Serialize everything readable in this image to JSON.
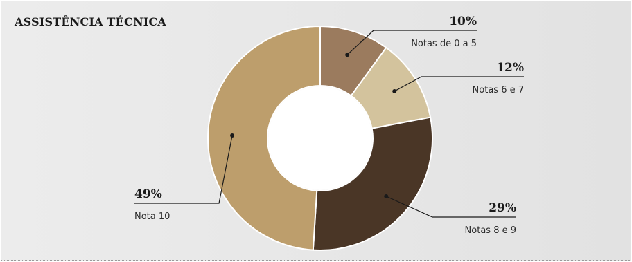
{
  "chart_data": {
    "type": "pie",
    "title": "ASSISTÊNCIA TÉCNICA",
    "donut": true,
    "legend": "none",
    "slices": [
      {
        "label": "Notas de 0 a 5",
        "value": 10,
        "value_label": "10%",
        "color": "#9b7b5e"
      },
      {
        "label": "Notas 6 e 7",
        "value": 12,
        "value_label": "12%",
        "color": "#d3c39d"
      },
      {
        "label": "Notas 8 e 9",
        "value": 29,
        "value_label": "29%",
        "color": "#4a3626"
      },
      {
        "label": "Nota 10",
        "value": 49,
        "value_label": "49%",
        "color": "#bd9e6c"
      }
    ]
  }
}
